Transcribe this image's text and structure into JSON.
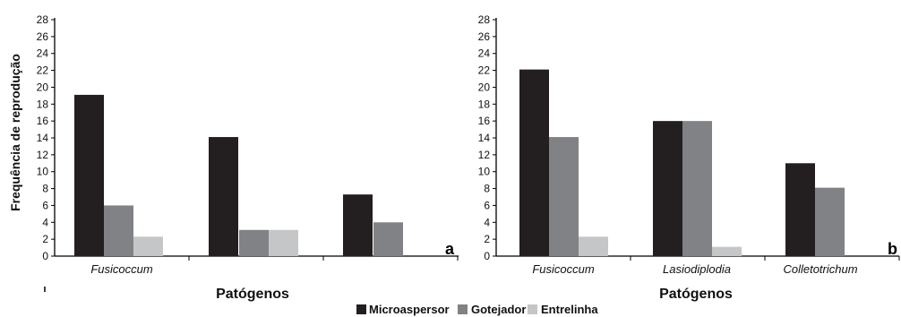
{
  "chart_data": [
    {
      "type": "bar",
      "panel_label": "a",
      "categories": [
        "Fusicoccum",
        "",
        ""
      ],
      "series": [
        {
          "name": "Microaspersor",
          "values": [
            19.1,
            14.1,
            7.3
          ]
        },
        {
          "name": "Gotejador",
          "values": [
            6.0,
            3.1,
            4.0
          ]
        },
        {
          "name": "Entrelinha",
          "values": [
            2.3,
            3.1,
            null
          ]
        }
      ],
      "xlabel": "Patógenos",
      "ylabel": "Frequência de reprodução",
      "ylim": [
        0,
        28
      ],
      "yticks": [
        0,
        2,
        4,
        6,
        8,
        10,
        12,
        14,
        16,
        18,
        20,
        22,
        24,
        26,
        28
      ],
      "grid": false
    },
    {
      "type": "bar",
      "panel_label": "b",
      "categories": [
        "Fusicoccum",
        "Lasiodiplodia",
        "Colletotrichum"
      ],
      "series": [
        {
          "name": "Microaspersor",
          "values": [
            22.1,
            16.0,
            11.0
          ]
        },
        {
          "name": "Gotejador",
          "values": [
            14.1,
            16.0,
            8.1
          ]
        },
        {
          "name": "Entrelinha",
          "values": [
            2.3,
            1.1,
            null
          ]
        }
      ],
      "xlabel": "Patógenos",
      "ylabel": "",
      "ylim": [
        0,
        28
      ],
      "yticks": [
        0,
        2,
        4,
        6,
        8,
        10,
        12,
        14,
        16,
        18,
        20,
        22,
        24,
        26,
        28
      ],
      "grid": false
    }
  ],
  "legend": {
    "placement": "bottom-center",
    "items": [
      {
        "label": "Microaspersor",
        "color": "#231f20"
      },
      {
        "label": "Gotejador",
        "color": "#808285"
      },
      {
        "label": "Entrelinha",
        "color": "#c4c6c8"
      }
    ]
  }
}
